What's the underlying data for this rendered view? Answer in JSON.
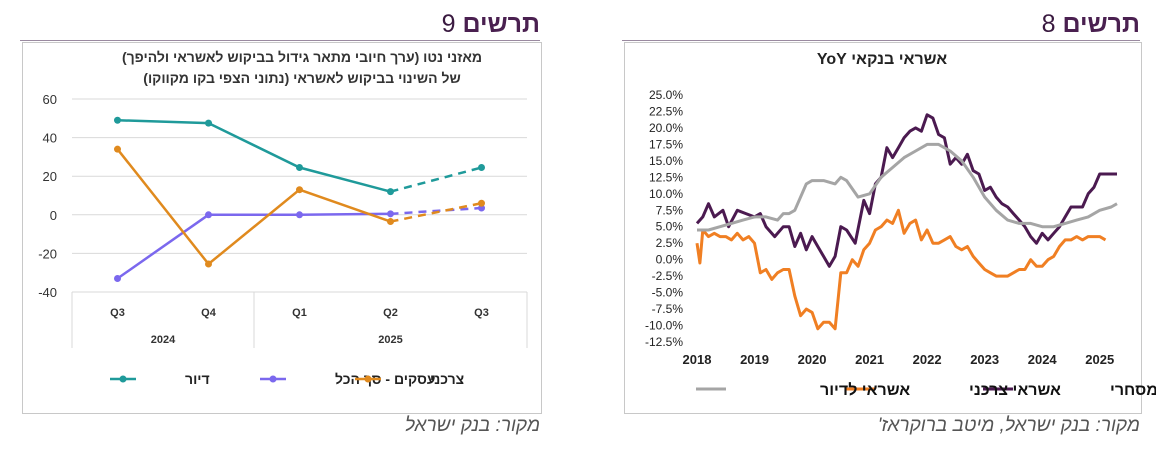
{
  "charts": [
    {
      "heading_word": "תרשים",
      "heading_number": "9",
      "source": "מקור: בנק ישראל",
      "chart_data": {
        "type": "line",
        "title": "מאזני נטו (ערך חיובי מתאר גידול בביקוש לאשראי ולהיפך)",
        "subtitle": "של השינוי בביקוש לאשראי (נתוני הצפי בקו מקווקו)",
        "categories": [
          "Q3",
          "Q4",
          "Q1",
          "Q2",
          "Q3"
        ],
        "year_groups": [
          {
            "label": "2024",
            "categories": [
              "Q3",
              "Q4"
            ]
          },
          {
            "label": "2025",
            "categories": [
              "Q1",
              "Q2",
              "Q3"
            ]
          }
        ],
        "ylim": [
          -40,
          60
        ],
        "yticks": [
          60,
          40,
          20,
          0,
          -20,
          -40
        ],
        "ytick_labels": [
          "60",
          "40",
          "20",
          "0",
          "-20",
          "-40"
        ],
        "forecast_from_index": 3,
        "series": [
          {
            "name": "דיור",
            "color": "#1f9a9a",
            "values": [
              49,
              47.5,
              24.5,
              12,
              24.5
            ]
          },
          {
            "name": "עסקים - סך הכל",
            "color": "#7b68ee",
            "values": [
              -33,
              0,
              0,
              0.5,
              3.5
            ]
          },
          {
            "name": "צרכני",
            "color": "#e08a1e",
            "values": [
              34,
              -25.5,
              13,
              -3.5,
              6
            ]
          }
        ],
        "legend_position": "bottom",
        "grid": true
      }
    },
    {
      "heading_word": "תרשים",
      "heading_number": "8",
      "source": "מקור: בנק ישראל, מיטב ברוקראז'",
      "chart_data": {
        "type": "line",
        "title": "אשראי בנקאי YoY",
        "x_labels": [
          "2018",
          "2019",
          "2020",
          "2021",
          "2022",
          "2023",
          "2024",
          "2025"
        ],
        "x_range": [
          2018.0,
          2025.3
        ],
        "ylim": [
          -12.5,
          25.0
        ],
        "ytick_labels": [
          "25.0%",
          "22.5%",
          "20.0%",
          "17.5%",
          "15.0%",
          "12.5%",
          "10.0%",
          "7.5%",
          "5.0%",
          "2.5%",
          "0.0%",
          "-2.5%",
          "-5.0%",
          "-7.5%",
          "-10.0%",
          "-12.5%"
        ],
        "grid": false,
        "legend_position": "bottom",
        "series": [
          {
            "name": "אשראי מסחרי",
            "color": "#4b1a50",
            "x": [
              2018.0,
              2018.1,
              2018.2,
              2018.3,
              2018.45,
              2018.55,
              2018.7,
              2018.85,
              2019.0,
              2019.1,
              2019.2,
              2019.35,
              2019.5,
              2019.6,
              2019.7,
              2019.8,
              2019.9,
              2020.0,
              2020.1,
              2020.2,
              2020.3,
              2020.4,
              2020.5,
              2020.6,
              2020.75,
              2020.9,
              2021.0,
              2021.1,
              2021.2,
              2021.3,
              2021.4,
              2021.5,
              2021.6,
              2021.7,
              2021.8,
              2021.9,
              2022.0,
              2022.1,
              2022.2,
              2022.3,
              2022.4,
              2022.5,
              2022.6,
              2022.7,
              2022.8,
              2022.9,
              2023.0,
              2023.1,
              2023.2,
              2023.3,
              2023.4,
              2023.5,
              2023.6,
              2023.7,
              2023.8,
              2023.9,
              2024.0,
              2024.1,
              2024.2,
              2024.3,
              2024.4,
              2024.5,
              2024.6,
              2024.7,
              2024.8,
              2024.9,
              2025.0,
              2025.1,
              2025.2,
              2025.3
            ],
            "y": [
              5.5,
              6.5,
              8.5,
              6.5,
              7.5,
              5.0,
              7.5,
              7.0,
              6.5,
              7.0,
              5.0,
              3.5,
              5.0,
              5.0,
              2.0,
              4.0,
              1.5,
              3.5,
              2.0,
              0.5,
              -1.0,
              0.5,
              5.0,
              4.5,
              2.5,
              9.0,
              7.0,
              11.5,
              12.5,
              17.0,
              15.5,
              17.0,
              18.5,
              19.5,
              20.0,
              19.5,
              22.0,
              21.5,
              19.0,
              18.5,
              14.5,
              15.5,
              14.5,
              16.0,
              13.5,
              13.0,
              10.5,
              11.0,
              9.5,
              8.5,
              8.0,
              7.0,
              6.0,
              5.0,
              3.5,
              2.5,
              4.0,
              3.0,
              4.0,
              5.0,
              6.5,
              8.0,
              8.0,
              8.0,
              10.0,
              11.0,
              13.0,
              13.0,
              13.0,
              13.0
            ]
          },
          {
            "name": "אשראי צרכני",
            "color": "#f07f23",
            "x": [
              2018.0,
              2018.05,
              2018.1,
              2018.2,
              2018.3,
              2018.4,
              2018.5,
              2018.6,
              2018.7,
              2018.8,
              2018.9,
              2019.0,
              2019.1,
              2019.2,
              2019.3,
              2019.4,
              2019.5,
              2019.6,
              2019.7,
              2019.8,
              2019.9,
              2020.0,
              2020.1,
              2020.2,
              2020.3,
              2020.4,
              2020.5,
              2020.6,
              2020.7,
              2020.8,
              2020.9,
              2021.0,
              2021.1,
              2021.2,
              2021.3,
              2021.4,
              2021.5,
              2021.6,
              2021.7,
              2021.8,
              2021.9,
              2022.0,
              2022.1,
              2022.2,
              2022.3,
              2022.4,
              2022.5,
              2022.6,
              2022.7,
              2022.8,
              2022.9,
              2023.0,
              2023.1,
              2023.2,
              2023.3,
              2023.4,
              2023.5,
              2023.6,
              2023.7,
              2023.8,
              2023.9,
              2024.0,
              2024.1,
              2024.2,
              2024.3,
              2024.4,
              2024.5,
              2024.6,
              2024.7,
              2024.8,
              2024.9,
              2025.0,
              2025.1
            ],
            "y": [
              2.5,
              -0.5,
              4.5,
              3.5,
              4.0,
              3.5,
              3.5,
              3.0,
              4.0,
              3.0,
              3.5,
              2.5,
              -2.0,
              -1.5,
              -3.0,
              -2.0,
              -1.5,
              -1.5,
              -5.5,
              -8.5,
              -7.5,
              -8.0,
              -10.5,
              -9.5,
              -9.5,
              -10.5,
              -2.0,
              -2.0,
              0.0,
              -1.0,
              1.5,
              2.5,
              4.5,
              5.0,
              6.0,
              5.5,
              7.5,
              4.0,
              5.5,
              6.0,
              3.0,
              4.5,
              2.5,
              2.5,
              3.0,
              3.5,
              2.0,
              1.5,
              2.0,
              0.5,
              -0.5,
              -1.5,
              -2.0,
              -2.5,
              -2.5,
              -2.5,
              -2.0,
              -1.5,
              -1.5,
              0.0,
              -1.0,
              -1.0,
              0.0,
              0.5,
              2.0,
              3.0,
              3.0,
              3.5,
              3.0,
              3.5,
              3.5,
              3.5,
              3.0
            ]
          },
          {
            "name": "אשראי לדיור",
            "color": "#a5a5a5",
            "x": [
              2018.0,
              2018.2,
              2018.4,
              2018.6,
              2018.8,
              2019.0,
              2019.2,
              2019.4,
              2019.5,
              2019.6,
              2019.7,
              2019.9,
              2020.0,
              2020.2,
              2020.4,
              2020.5,
              2020.6,
              2020.8,
              2021.0,
              2021.2,
              2021.4,
              2021.6,
              2021.8,
              2022.0,
              2022.2,
              2022.4,
              2022.6,
              2022.8,
              2023.0,
              2023.2,
              2023.4,
              2023.6,
              2023.8,
              2024.0,
              2024.2,
              2024.4,
              2024.6,
              2024.8,
              2025.0,
              2025.2,
              2025.3
            ],
            "y": [
              4.5,
              4.5,
              5.0,
              5.5,
              6.0,
              6.5,
              6.5,
              6.0,
              7.0,
              7.0,
              7.5,
              11.5,
              12.0,
              12.0,
              11.5,
              12.5,
              12.0,
              9.5,
              10.0,
              12.5,
              14.0,
              15.5,
              16.5,
              17.5,
              17.5,
              16.5,
              15.0,
              12.5,
              9.5,
              7.5,
              6.0,
              5.5,
              5.5,
              5.0,
              5.0,
              5.5,
              6.0,
              6.5,
              7.5,
              8.0,
              8.5
            ]
          }
        ]
      }
    }
  ]
}
